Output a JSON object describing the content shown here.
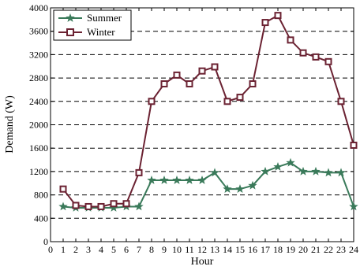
{
  "chart_data": {
    "type": "line",
    "xlabel": "Hour",
    "ylabel": "Demand (W)",
    "xlim": [
      0,
      24
    ],
    "ylim": [
      0,
      4000
    ],
    "xticks": [
      0,
      1,
      2,
      3,
      4,
      5,
      6,
      7,
      8,
      9,
      10,
      11,
      12,
      13,
      14,
      15,
      16,
      17,
      18,
      19,
      20,
      21,
      22,
      23,
      24
    ],
    "yticks": [
      0,
      400,
      800,
      1200,
      1600,
      2000,
      2400,
      2800,
      3200,
      3600,
      4000
    ],
    "grid": "horizontal dashed",
    "legend_position": "top-left",
    "x": [
      1,
      2,
      3,
      4,
      5,
      6,
      7,
      8,
      9,
      10,
      11,
      12,
      13,
      14,
      15,
      16,
      17,
      18,
      19,
      20,
      21,
      22,
      23,
      24
    ],
    "series": [
      {
        "name": "Summer",
        "marker": "star",
        "color": "#3a7a5a",
        "values": [
          600,
          580,
          580,
          580,
          580,
          600,
          600,
          1050,
          1050,
          1050,
          1050,
          1050,
          1180,
          900,
          900,
          960,
          1200,
          1280,
          1350,
          1200,
          1200,
          1180,
          1180,
          600
        ]
      },
      {
        "name": "Winter",
        "marker": "square",
        "color": "#6b2232",
        "values": [
          900,
          620,
          600,
          600,
          650,
          650,
          1180,
          2400,
          2700,
          2850,
          2700,
          2920,
          2990,
          2400,
          2470,
          2700,
          3750,
          3870,
          3450,
          3230,
          3160,
          3080,
          2400,
          1650
        ]
      }
    ]
  }
}
